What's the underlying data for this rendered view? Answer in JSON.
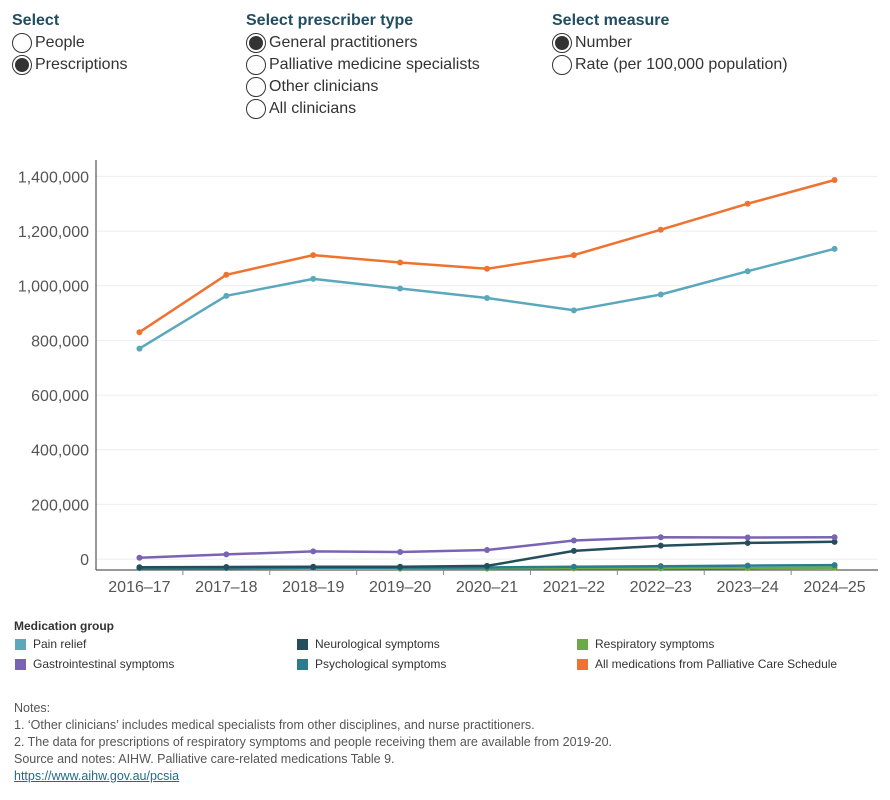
{
  "filters": {
    "select": {
      "title": "Select",
      "options": [
        {
          "label": "People",
          "selected": false
        },
        {
          "label": "Prescriptions",
          "selected": true
        }
      ]
    },
    "prescriber": {
      "title": "Select prescriber type",
      "options": [
        {
          "label": "General practitioners",
          "selected": true
        },
        {
          "label": "Palliative medicine specialists",
          "selected": false
        },
        {
          "label": "Other clinicians",
          "selected": false
        },
        {
          "label": "All clinicians",
          "selected": false
        }
      ]
    },
    "measure": {
      "title": "Select measure",
      "options": [
        {
          "label": "Number",
          "selected": true
        },
        {
          "label": "Rate (per 100,000 population)",
          "selected": false
        }
      ]
    }
  },
  "chart_data": {
    "type": "line",
    "categories": [
      "2016–17",
      "2017–18",
      "2018–19",
      "2019–20",
      "2020–21",
      "2021–22",
      "2022–23",
      "2023–24",
      "2024–25"
    ],
    "yticks": [
      0,
      200000,
      400000,
      600000,
      800000,
      1000000,
      1200000,
      1400000
    ],
    "ytick_labels": [
      "0",
      "200,000",
      "400,000",
      "600,000",
      "800,000",
      "1,000,000",
      "1,200,000",
      "1,400,000"
    ],
    "ylim": [
      -40000,
      1460000
    ],
    "series": [
      {
        "name": "All medications from Palliative Care Schedule",
        "color": "#ee7330",
        "values": [
          830000,
          1040000,
          1112000,
          1085000,
          1062000,
          1112000,
          1205000,
          1300000,
          1387000
        ]
      },
      {
        "name": "Pain relief",
        "color": "#5ba8bd",
        "values": [
          770000,
          963000,
          1025000,
          990000,
          955000,
          910000,
          968000,
          1053000,
          1135000
        ]
      },
      {
        "name": "Gastrointestinal symptoms",
        "color": "#7b63b4",
        "values": [
          5000,
          17000,
          28000,
          26000,
          33000,
          68000,
          80000,
          79000,
          80000
        ]
      },
      {
        "name": "Neurological symptoms",
        "color": "#254e5c",
        "values": [
          -30000,
          -29000,
          -28000,
          -28000,
          -25000,
          30000,
          49000,
          59000,
          63000
        ]
      },
      {
        "name": "Psychological symptoms",
        "color": "#2a7c8e",
        "values": [
          -33000,
          -33000,
          -32000,
          -32000,
          -31000,
          -28000,
          -26000,
          -24000,
          -22000
        ]
      },
      {
        "name": "Respiratory symptoms",
        "color": "#6aaa48",
        "values": [
          null,
          null,
          null,
          -35000,
          -35000,
          -34000,
          -34000,
          -33000,
          -32000
        ]
      }
    ]
  },
  "legend": {
    "title": "Medication group",
    "items": [
      {
        "label": "Pain relief",
        "color": "#5ba8bd"
      },
      {
        "label": "Neurological symptoms",
        "color": "#254e5c"
      },
      {
        "label": "Respiratory symptoms",
        "color": "#6aaa48"
      },
      {
        "label": "Gastrointestinal symptoms",
        "color": "#7b63b4"
      },
      {
        "label": "Psychological symptoms",
        "color": "#2a7c8e"
      },
      {
        "label": "All medications from Palliative Care Schedule",
        "color": "#ee7330"
      }
    ]
  },
  "notes": {
    "heading": "Notes:",
    "line1": "1. ‘Other clinicians’ includes medical specialists from other disciplines, and nurse practitioners.",
    "line2": "2. The data for prescriptions of respiratory symptoms and people receiving them are available from 2019-20.",
    "source": "Source and notes: AIHW. Palliative care-related medications Table 9.",
    "link": "https://www.aihw.gov.au/pcsia"
  }
}
